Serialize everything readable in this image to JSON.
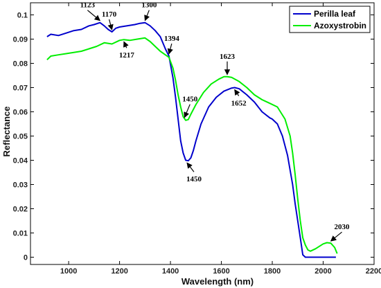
{
  "chart_data": {
    "type": "line",
    "xlabel": "Wavelength (nm)",
    "ylabel": "Reflectance",
    "xlim": [
      850,
      2200
    ],
    "ylim": [
      -0.003,
      0.105
    ],
    "x_ticks": [
      1000,
      1200,
      1400,
      1600,
      1800,
      2000,
      2200
    ],
    "y_ticks": [
      0,
      0.01,
      0.02,
      0.03,
      0.04,
      0.05,
      0.06,
      0.07,
      0.08,
      0.09,
      0.1
    ],
    "y_tick_labels": [
      "0",
      "0.01",
      "0.02",
      "0.03",
      "0.04",
      "0.05",
      "0.06",
      "0.07",
      "0.08",
      "0.09",
      "0.1"
    ],
    "grid": false,
    "legend_position": "top-right",
    "series": [
      {
        "name": "Perilla leaf",
        "color": "#0000cc",
        "x": [
          915,
          930,
          960,
          990,
          1020,
          1050,
          1080,
          1100,
          1123,
          1140,
          1155,
          1170,
          1185,
          1200,
          1230,
          1260,
          1280,
          1300,
          1320,
          1340,
          1360,
          1380,
          1394,
          1410,
          1420,
          1430,
          1440,
          1450,
          1460,
          1470,
          1480,
          1490,
          1500,
          1520,
          1550,
          1580,
          1610,
          1640,
          1652,
          1670,
          1700,
          1730,
          1760,
          1790,
          1800,
          1820,
          1840,
          1860,
          1880,
          1890,
          1900,
          1910,
          1920,
          1930,
          1950,
          2000,
          2050
        ],
        "y": [
          0.091,
          0.092,
          0.0915,
          0.0925,
          0.0935,
          0.094,
          0.0955,
          0.096,
          0.0968,
          0.0955,
          0.094,
          0.093,
          0.0945,
          0.095,
          0.0955,
          0.096,
          0.0965,
          0.0968,
          0.0955,
          0.0935,
          0.091,
          0.086,
          0.083,
          0.074,
          0.066,
          0.057,
          0.048,
          0.043,
          0.04,
          0.0398,
          0.041,
          0.044,
          0.048,
          0.055,
          0.062,
          0.066,
          0.0685,
          0.0698,
          0.07,
          0.0695,
          0.067,
          0.064,
          0.06,
          0.0575,
          0.057,
          0.055,
          0.05,
          0.042,
          0.03,
          0.022,
          0.015,
          0.008,
          0.001,
          0.0,
          0.0,
          0.0,
          0.0
        ]
      },
      {
        "name": "Azoxystrobin",
        "color": "#00ee00",
        "x": [
          915,
          930,
          960,
          990,
          1020,
          1050,
          1080,
          1110,
          1140,
          1170,
          1200,
          1217,
          1240,
          1270,
          1300,
          1320,
          1340,
          1360,
          1380,
          1394,
          1410,
          1420,
          1430,
          1440,
          1450,
          1460,
          1470,
          1480,
          1500,
          1530,
          1560,
          1590,
          1610,
          1623,
          1640,
          1670,
          1700,
          1730,
          1760,
          1790,
          1820,
          1850,
          1870,
          1880,
          1890,
          1900,
          1910,
          1920,
          1930,
          1940,
          1950,
          1970,
          2000,
          2015,
          2030,
          2045,
          2055
        ],
        "y": [
          0.0815,
          0.083,
          0.0835,
          0.084,
          0.0845,
          0.085,
          0.086,
          0.087,
          0.0885,
          0.088,
          0.0895,
          0.0898,
          0.0895,
          0.09,
          0.0905,
          0.089,
          0.087,
          0.085,
          0.0835,
          0.0825,
          0.078,
          0.073,
          0.067,
          0.062,
          0.058,
          0.0565,
          0.0568,
          0.059,
          0.063,
          0.068,
          0.0715,
          0.0735,
          0.0745,
          0.0745,
          0.0742,
          0.0725,
          0.07,
          0.067,
          0.065,
          0.0635,
          0.062,
          0.057,
          0.05,
          0.043,
          0.034,
          0.024,
          0.015,
          0.008,
          0.005,
          0.003,
          0.0025,
          0.0035,
          0.0055,
          0.006,
          0.0058,
          0.004,
          0.0015
        ]
      }
    ],
    "annotations": [
      {
        "text": "1123",
        "x": 1123,
        "y": 0.0968
      },
      {
        "text": "1170",
        "x": 1170,
        "y": 0.093
      },
      {
        "text": "1300",
        "x": 1300,
        "y": 0.0968
      },
      {
        "text": "1394",
        "x": 1394,
        "y": 0.083
      },
      {
        "text": "1217",
        "x": 1217,
        "y": 0.0898
      },
      {
        "text": "1450",
        "x": 1455,
        "y": 0.0568
      },
      {
        "text": "1623",
        "x": 1623,
        "y": 0.0745
      },
      {
        "text": "1652",
        "x": 1652,
        "y": 0.07
      },
      {
        "text": "1450",
        "x": 1465,
        "y": 0.0398
      },
      {
        "text": "2030",
        "x": 2030,
        "y": 0.0058
      }
    ]
  }
}
